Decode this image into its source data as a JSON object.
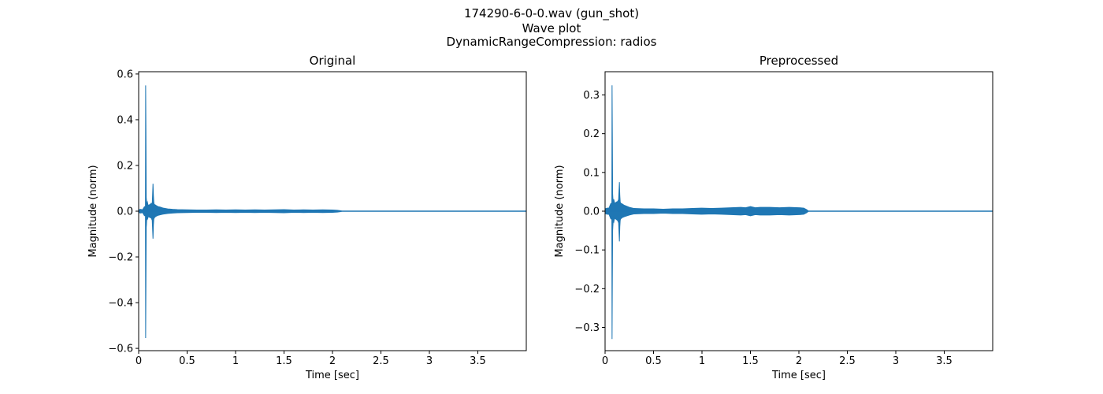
{
  "figure": {
    "title_lines": [
      "174290-6-0-0.wav (gun_shot)",
      "Wave plot",
      "DynamicRangeCompression: radios"
    ]
  },
  "chart_data": [
    {
      "type": "line",
      "title": "Original",
      "xlabel": "Time [sec]",
      "ylabel": "Magnitude (norm)",
      "xlim": [
        0,
        4.0
      ],
      "ylim": [
        -0.61,
        0.61
      ],
      "xticks": [
        0,
        0.5,
        1,
        1.5,
        2,
        2.5,
        3,
        3.5
      ],
      "xtick_labels": [
        "0",
        "0.5",
        "1",
        "1.5",
        "2",
        "2.5",
        "3",
        "3.5"
      ],
      "yticks": [
        -0.6,
        -0.4,
        -0.2,
        0.0,
        0.2,
        0.4,
        0.6
      ],
      "ytick_labels": [
        "−0.6",
        "−0.4",
        "−0.2",
        "0.0",
        "0.2",
        "0.4",
        "0.6"
      ],
      "color": "#1f77b4",
      "grid": false,
      "series": [
        {
          "x": [
            0.0,
            0.02,
            0.04,
            0.06,
            0.07,
            0.072,
            0.075,
            0.078,
            0.08,
            0.083,
            0.086,
            0.09,
            0.095,
            0.1,
            0.11,
            0.12,
            0.13,
            0.14,
            0.148,
            0.152,
            0.156,
            0.16,
            0.17,
            0.18,
            0.2,
            0.22,
            0.25,
            0.3,
            0.35,
            0.4,
            0.5,
            0.6,
            0.7,
            0.8,
            0.9,
            1.0,
            1.1,
            1.2,
            1.3,
            1.4,
            1.5,
            1.6,
            1.7,
            1.8,
            1.9,
            2.0,
            2.05,
            2.08,
            2.1,
            4.0
          ],
          "upper": [
            0.006,
            0.008,
            0.006,
            0.02,
            0.02,
            0.55,
            0.35,
            0.06,
            0.05,
            0.03,
            0.035,
            0.04,
            0.03,
            0.025,
            0.028,
            0.03,
            0.035,
            0.03,
            0.12,
            0.07,
            0.04,
            0.03,
            0.028,
            0.025,
            0.02,
            0.018,
            0.014,
            0.01,
            0.008,
            0.007,
            0.006,
            0.005,
            0.005,
            0.006,
            0.005,
            0.006,
            0.005,
            0.006,
            0.005,
            0.006,
            0.007,
            0.005,
            0.006,
            0.005,
            0.006,
            0.005,
            0.004,
            0.002,
            0.0,
            0.0
          ],
          "lower": [
            -0.006,
            -0.008,
            -0.006,
            -0.02,
            -0.02,
            -0.555,
            -0.32,
            -0.07,
            -0.06,
            -0.035,
            -0.03,
            -0.035,
            -0.03,
            -0.022,
            -0.026,
            -0.028,
            -0.03,
            -0.04,
            -0.12,
            -0.06,
            -0.035,
            -0.03,
            -0.025,
            -0.022,
            -0.018,
            -0.016,
            -0.013,
            -0.01,
            -0.008,
            -0.007,
            -0.006,
            -0.005,
            -0.005,
            -0.006,
            -0.005,
            -0.006,
            -0.005,
            -0.006,
            -0.005,
            -0.006,
            -0.007,
            -0.005,
            -0.006,
            -0.005,
            -0.006,
            -0.005,
            -0.004,
            -0.002,
            0.0,
            0.0
          ]
        }
      ]
    },
    {
      "type": "line",
      "title": "Preprocessed",
      "xlabel": "Time [sec]",
      "ylabel": "Magnitude (norm)",
      "xlim": [
        0,
        4.0
      ],
      "ylim": [
        -0.36,
        0.36
      ],
      "xticks": [
        0,
        0.5,
        1,
        1.5,
        2,
        2.5,
        3,
        3.5
      ],
      "xtick_labels": [
        "0",
        "0.5",
        "1",
        "1.5",
        "2",
        "2.5",
        "3",
        "3.5"
      ],
      "yticks": [
        -0.3,
        -0.2,
        -0.1,
        0.0,
        0.1,
        0.2,
        0.3
      ],
      "ytick_labels": [
        "−0.3",
        "−0.2",
        "−0.1",
        "0.0",
        "0.1",
        "0.2",
        "0.3"
      ],
      "color": "#1f77b4",
      "grid": false,
      "series": [
        {
          "x": [
            0.0,
            0.02,
            0.04,
            0.06,
            0.07,
            0.072,
            0.075,
            0.078,
            0.08,
            0.083,
            0.086,
            0.09,
            0.095,
            0.1,
            0.11,
            0.12,
            0.13,
            0.14,
            0.148,
            0.152,
            0.156,
            0.16,
            0.17,
            0.18,
            0.2,
            0.25,
            0.3,
            0.4,
            0.5,
            0.6,
            0.7,
            0.8,
            0.9,
            1.0,
            1.1,
            1.2,
            1.3,
            1.4,
            1.45,
            1.5,
            1.55,
            1.6,
            1.7,
            1.8,
            1.9,
            2.0,
            2.05,
            2.08,
            2.1,
            4.0
          ],
          "upper": [
            0.006,
            0.008,
            0.008,
            0.02,
            0.02,
            0.325,
            0.2,
            0.045,
            0.035,
            0.025,
            0.03,
            0.03,
            0.025,
            0.02,
            0.022,
            0.024,
            0.025,
            0.03,
            0.075,
            0.04,
            0.025,
            0.02,
            0.02,
            0.018,
            0.015,
            0.01,
            0.007,
            0.006,
            0.006,
            0.005,
            0.006,
            0.006,
            0.007,
            0.008,
            0.007,
            0.008,
            0.009,
            0.01,
            0.009,
            0.012,
            0.009,
            0.01,
            0.01,
            0.009,
            0.01,
            0.009,
            0.008,
            0.004,
            0.0,
            0.0
          ],
          "lower": [
            -0.006,
            -0.008,
            -0.008,
            -0.02,
            -0.02,
            -0.33,
            -0.18,
            -0.05,
            -0.04,
            -0.028,
            -0.025,
            -0.028,
            -0.022,
            -0.018,
            -0.02,
            -0.022,
            -0.024,
            -0.03,
            -0.078,
            -0.04,
            -0.024,
            -0.02,
            -0.018,
            -0.016,
            -0.014,
            -0.01,
            -0.007,
            -0.006,
            -0.006,
            -0.005,
            -0.006,
            -0.006,
            -0.007,
            -0.008,
            -0.007,
            -0.008,
            -0.009,
            -0.01,
            -0.009,
            -0.012,
            -0.009,
            -0.01,
            -0.01,
            -0.009,
            -0.01,
            -0.009,
            -0.008,
            -0.004,
            0.0,
            0.0
          ]
        }
      ]
    }
  ]
}
